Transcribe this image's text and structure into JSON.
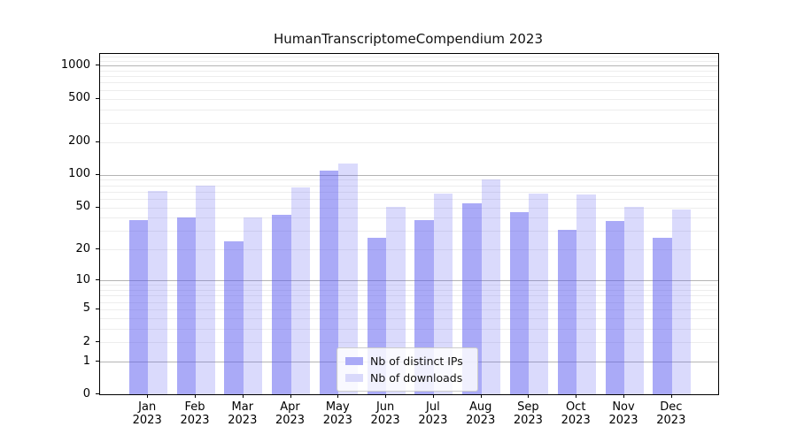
{
  "title": "HumanTranscriptomeCompendium 2023",
  "chart_data": {
    "type": "bar",
    "title": "HumanTranscriptomeCompendium 2023",
    "categories": [
      "Jan 2023",
      "Feb 2023",
      "Mar 2023",
      "Apr 2023",
      "May 2023",
      "Jun 2023",
      "Jul 2023",
      "Aug 2023",
      "Sep 2023",
      "Oct 2023",
      "Nov 2023",
      "Dec 2023"
    ],
    "series": [
      {
        "name": "Nb of distinct IPs",
        "color": "rgba(85,85,240,0.5)",
        "swatch_color": "#aaaaf7",
        "values": [
          38,
          40,
          24,
          43,
          110,
          26,
          38,
          55,
          45,
          31,
          37,
          26
        ]
      },
      {
        "name": "Nb of downloads",
        "color": "rgba(85,85,240,0.22)",
        "swatch_color": "#d9d9fb",
        "values": [
          71,
          80,
          40,
          77,
          128,
          51,
          67,
          90,
          67,
          66,
          51,
          48
        ]
      }
    ],
    "y_scale": "log1p",
    "y_ticks": [
      1000,
      500,
      200,
      100,
      50,
      20,
      10,
      5,
      2,
      1,
      0
    ],
    "ylim": [
      0,
      1280
    ],
    "xlabel": "",
    "ylabel": "",
    "grid": true,
    "legend": {
      "position": "lower center",
      "entries": [
        "Nb of distinct IPs",
        "Nb of downloads"
      ]
    }
  }
}
